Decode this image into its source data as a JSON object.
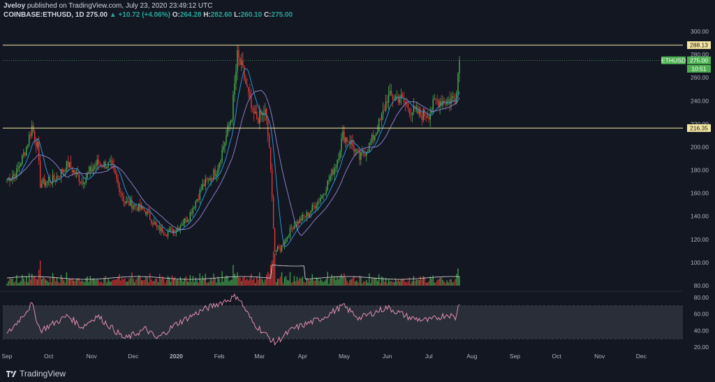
{
  "header": {
    "author": "Jveloy",
    "published_text": "published on TradingView.com, July 23, 2020 23:49:12 UTC",
    "symbol": "COINBASE:ETHUSD, 1D",
    "last": "275.00",
    "change": "+10.72 (+4.06%)",
    "o_label": "O:",
    "o": "264.28",
    "h_label": "H:",
    "h": "282.60",
    "l_label": "L:",
    "l": "260.10",
    "c_label": "C:",
    "c": "275.00"
  },
  "badges": {
    "symbol_label": "ETHUSD",
    "price": "275.00",
    "countdown": "10:51",
    "level_upper": "288.13",
    "level_lower": "216.35"
  },
  "brand": "TradingView",
  "colors": {
    "background": "#131722",
    "up": "#26a69a",
    "candle_up": "#4caf50",
    "candle_down": "#e53935",
    "level_line": "#f5e6a0",
    "ma_fast": "#2b95d6",
    "ma_slow": "#8e7cc3",
    "rsi": "#e08fb0"
  },
  "chart_data": [
    {
      "type": "candlestick",
      "title": "COINBASE:ETHUSD, 1D",
      "x_ticks": [
        "Sep",
        "Oct",
        "Nov",
        "Dec",
        "2020",
        "Feb",
        "Mar",
        "Apr",
        "May",
        "Jun",
        "Jul",
        "Aug",
        "Sep",
        "Oct",
        "Nov",
        "Dec"
      ],
      "y_ticks": [
        "300.00",
        "280.00",
        "260.00",
        "240.00",
        "220.00",
        "200.00",
        "180.00",
        "160.00",
        "140.00",
        "120.00",
        "100.00",
        "80.00"
      ],
      "ylim": [
        80,
        300
      ],
      "horizontal_levels": [
        288.13,
        216.35
      ],
      "last_price": 275.0,
      "close_anchors": [
        [
          "2019-09-01",
          172
        ],
        [
          "2019-09-08",
          178
        ],
        [
          "2019-09-15",
          200
        ],
        [
          "2019-09-19",
          218
        ],
        [
          "2019-09-23",
          200
        ],
        [
          "2019-09-25",
          168
        ],
        [
          "2019-10-05",
          172
        ],
        [
          "2019-10-15",
          185
        ],
        [
          "2019-10-25",
          170
        ],
        [
          "2019-11-05",
          186
        ],
        [
          "2019-11-15",
          184
        ],
        [
          "2019-11-25",
          152
        ],
        [
          "2019-12-01",
          150
        ],
        [
          "2019-12-10",
          144
        ],
        [
          "2019-12-18",
          130
        ],
        [
          "2019-12-25",
          126
        ],
        [
          "2020-01-01",
          129
        ],
        [
          "2020-01-10",
          140
        ],
        [
          "2020-01-20",
          166
        ],
        [
          "2020-01-30",
          180
        ],
        [
          "2020-02-05",
          205
        ],
        [
          "2020-02-10",
          228
        ],
        [
          "2020-02-14",
          278
        ],
        [
          "2020-02-18",
          265
        ],
        [
          "2020-02-25",
          228
        ],
        [
          "2020-02-29",
          225
        ],
        [
          "2020-03-05",
          230
        ],
        [
          "2020-03-08",
          200
        ],
        [
          "2020-03-12",
          110
        ],
        [
          "2020-03-16",
          112
        ],
        [
          "2020-03-25",
          132
        ],
        [
          "2020-04-05",
          142
        ],
        [
          "2020-04-15",
          158
        ],
        [
          "2020-04-25",
          185
        ],
        [
          "2020-04-30",
          210
        ],
        [
          "2020-05-05",
          205
        ],
        [
          "2020-05-12",
          190
        ],
        [
          "2020-05-20",
          203
        ],
        [
          "2020-05-28",
          225
        ],
        [
          "2020-06-01",
          243
        ],
        [
          "2020-06-10",
          243
        ],
        [
          "2020-06-18",
          232
        ],
        [
          "2020-06-25",
          228
        ],
        [
          "2020-07-01",
          229
        ],
        [
          "2020-07-06",
          240
        ],
        [
          "2020-07-15",
          240
        ],
        [
          "2020-07-20",
          243
        ],
        [
          "2020-07-22",
          264
        ],
        [
          "2020-07-23",
          275
        ]
      ],
      "volume": "green/red volume bars with moving-average line",
      "moving_averages": [
        "fast (blue)",
        "slow (purple)"
      ]
    },
    {
      "type": "line",
      "title": "",
      "y_ticks": [
        "80.00",
        "60.00",
        "40.00",
        "20.00"
      ],
      "ylim": [
        20,
        80
      ],
      "band": [
        30,
        70
      ],
      "series_anchor_points": [
        [
          "2019-09-01",
          35
        ],
        [
          "2019-09-19",
          72
        ],
        [
          "2019-09-25",
          40
        ],
        [
          "2019-10-15",
          58
        ],
        [
          "2019-10-25",
          44
        ],
        [
          "2019-11-05",
          58
        ],
        [
          "2019-11-25",
          30
        ],
        [
          "2019-12-10",
          42
        ],
        [
          "2019-12-18",
          30
        ],
        [
          "2020-01-01",
          48
        ],
        [
          "2020-01-20",
          65
        ],
        [
          "2020-02-14",
          82
        ],
        [
          "2020-02-25",
          50
        ],
        [
          "2020-03-12",
          25
        ],
        [
          "2020-03-25",
          42
        ],
        [
          "2020-04-15",
          55
        ],
        [
          "2020-04-30",
          70
        ],
        [
          "2020-05-12",
          55
        ],
        [
          "2020-06-01",
          68
        ],
        [
          "2020-06-18",
          55
        ],
        [
          "2020-07-01",
          52
        ],
        [
          "2020-07-15",
          60
        ],
        [
          "2020-07-20",
          55
        ],
        [
          "2020-07-23",
          74
        ]
      ]
    }
  ]
}
